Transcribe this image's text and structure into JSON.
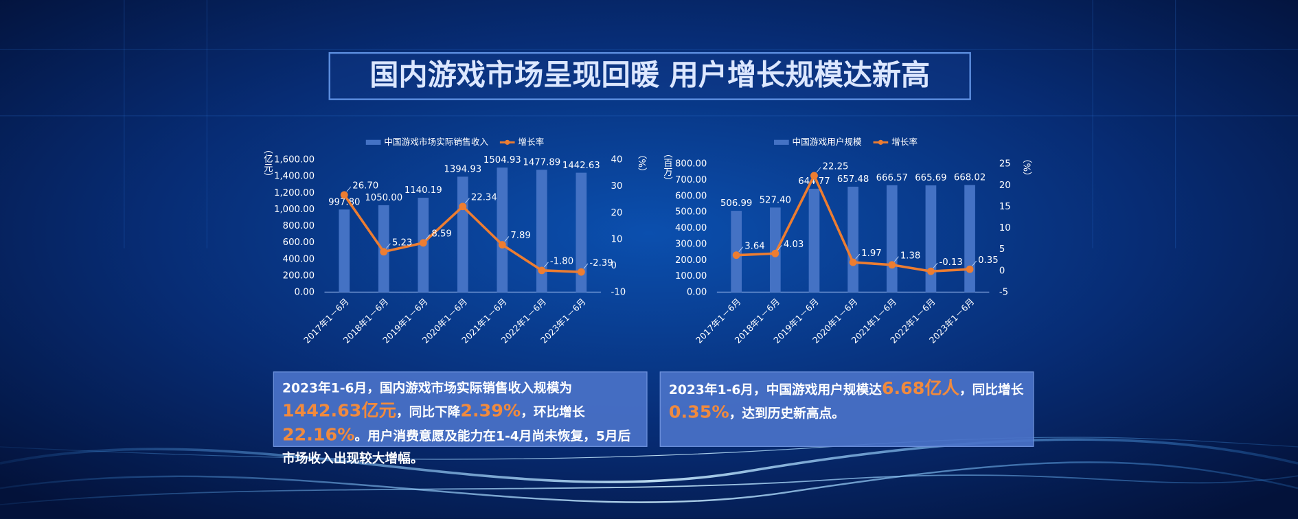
{
  "title": "国内游戏市场呈现回暖 用户增长规模达新高",
  "chart_data": [
    {
      "type": "combo",
      "y_label": "（亿元）",
      "y2_label": "（%）",
      "categories": [
        "2017年1－6月",
        "2018年1－6月",
        "2019年1－6月",
        "2020年1－6月",
        "2021年1－6月",
        "2022年1－6月",
        "2023年1－6月"
      ],
      "series": [
        {
          "name": "中国游戏市场实际销售收入",
          "type": "bar",
          "color": "#4472c4",
          "values": [
            997.8,
            1050,
            1140.19,
            1394.93,
            1504.93,
            1477.89,
            1442.63
          ],
          "value_labels": [
            "997.80",
            "1050.00",
            "1140.19",
            "1394.93",
            "1504.93",
            "1477.89",
            "1442.63"
          ]
        },
        {
          "name": "增长率",
          "type": "line",
          "axis": "y2",
          "color": "#ed7d31",
          "values": [
            26.7,
            5.23,
            8.59,
            22.34,
            7.89,
            -1.8,
            -2.39
          ],
          "value_labels": [
            "26.70",
            "5.23",
            "8.59",
            "22.34",
            "7.89",
            "-1.80",
            "-2.39"
          ]
        }
      ],
      "ylim": [
        0,
        1600
      ],
      "yticks": [
        {
          "value": 0,
          "label": "0.00"
        },
        {
          "value": 200,
          "label": "200.00"
        },
        {
          "value": 400,
          "label": "400.00"
        },
        {
          "value": 600,
          "label": "600.00"
        },
        {
          "value": 800,
          "label": "800.00"
        },
        {
          "value": 1000,
          "label": "1,000.00"
        },
        {
          "value": 1200,
          "label": "1,200.00"
        },
        {
          "value": 1400,
          "label": "1,400.00"
        },
        {
          "value": 1600,
          "label": "1,600.00"
        }
      ],
      "y2lim": [
        -10,
        40
      ],
      "y2ticks": [
        -10,
        0,
        10,
        20,
        30,
        40
      ],
      "legend": "top",
      "grid": false
    },
    {
      "type": "combo",
      "y_label": "（百万）",
      "y2_label": "（%）",
      "categories": [
        "2017年1－6月",
        "2018年1－6月",
        "2019年1－6月",
        "2020年1－6月",
        "2021年1－6月",
        "2022年1－6月",
        "2023年1－6月"
      ],
      "series": [
        {
          "name": "中国游戏用户规模",
          "type": "bar",
          "color": "#4472c4",
          "values": [
            506.99,
            527.4,
            644.77,
            657.48,
            666.57,
            665.69,
            668.02
          ],
          "value_labels": [
            "506.99",
            "527.40",
            "644.77",
            "657.48",
            "666.57",
            "665.69",
            "668.02"
          ]
        },
        {
          "name": "增长率",
          "type": "line",
          "axis": "y2",
          "color": "#ed7d31",
          "values": [
            3.64,
            4.03,
            22.25,
            1.97,
            1.38,
            -0.13,
            0.35
          ]
        }
      ],
      "ylim": [
        0,
        800
      ],
      "yticks": [
        {
          "value": 0,
          "label": "0.00"
        },
        {
          "value": 100,
          "label": "100.00"
        },
        {
          "value": 200,
          "label": "200.00"
        },
        {
          "value": 300,
          "label": "300.00"
        },
        {
          "value": 400,
          "label": "400.00"
        },
        {
          "value": 500,
          "label": "500.00"
        },
        {
          "value": 600,
          "label": "600.00"
        },
        {
          "value": 700,
          "label": "700.00"
        },
        {
          "value": 800,
          "label": "800.00"
        }
      ],
      "y2lim": [
        -5,
        25
      ],
      "y2ticks": [
        -5,
        0,
        5,
        10,
        15,
        20,
        25
      ],
      "legend": "top",
      "grid": false
    }
  ],
  "notes": [
    {
      "segments": [
        {
          "text": "2023年1-6月，国内游戏市场实际销售收入规模为",
          "emphasis": false
        },
        {
          "text": "1442.63亿元",
          "emphasis": true
        },
        {
          "text": "，同比下降",
          "emphasis": false
        },
        {
          "text": "2.39%",
          "emphasis": true
        },
        {
          "text": "，环比增长",
          "emphasis": false
        },
        {
          "text": "22.16%",
          "emphasis": true
        },
        {
          "text": "。用户消费意愿及能力在1-4月尚未恢复，5月后市场收入出现较大增幅。",
          "emphasis": false
        }
      ]
    },
    {
      "segments": [
        {
          "text": "2023年1-6月，中国游戏用户规模达",
          "emphasis": false
        },
        {
          "text": "6.68亿人",
          "emphasis": true
        },
        {
          "text": "，同比增长",
          "emphasis": false
        },
        {
          "text": "0.35%",
          "emphasis": true
        },
        {
          "text": "，达到历史新高点。",
          "emphasis": false
        }
      ]
    }
  ]
}
